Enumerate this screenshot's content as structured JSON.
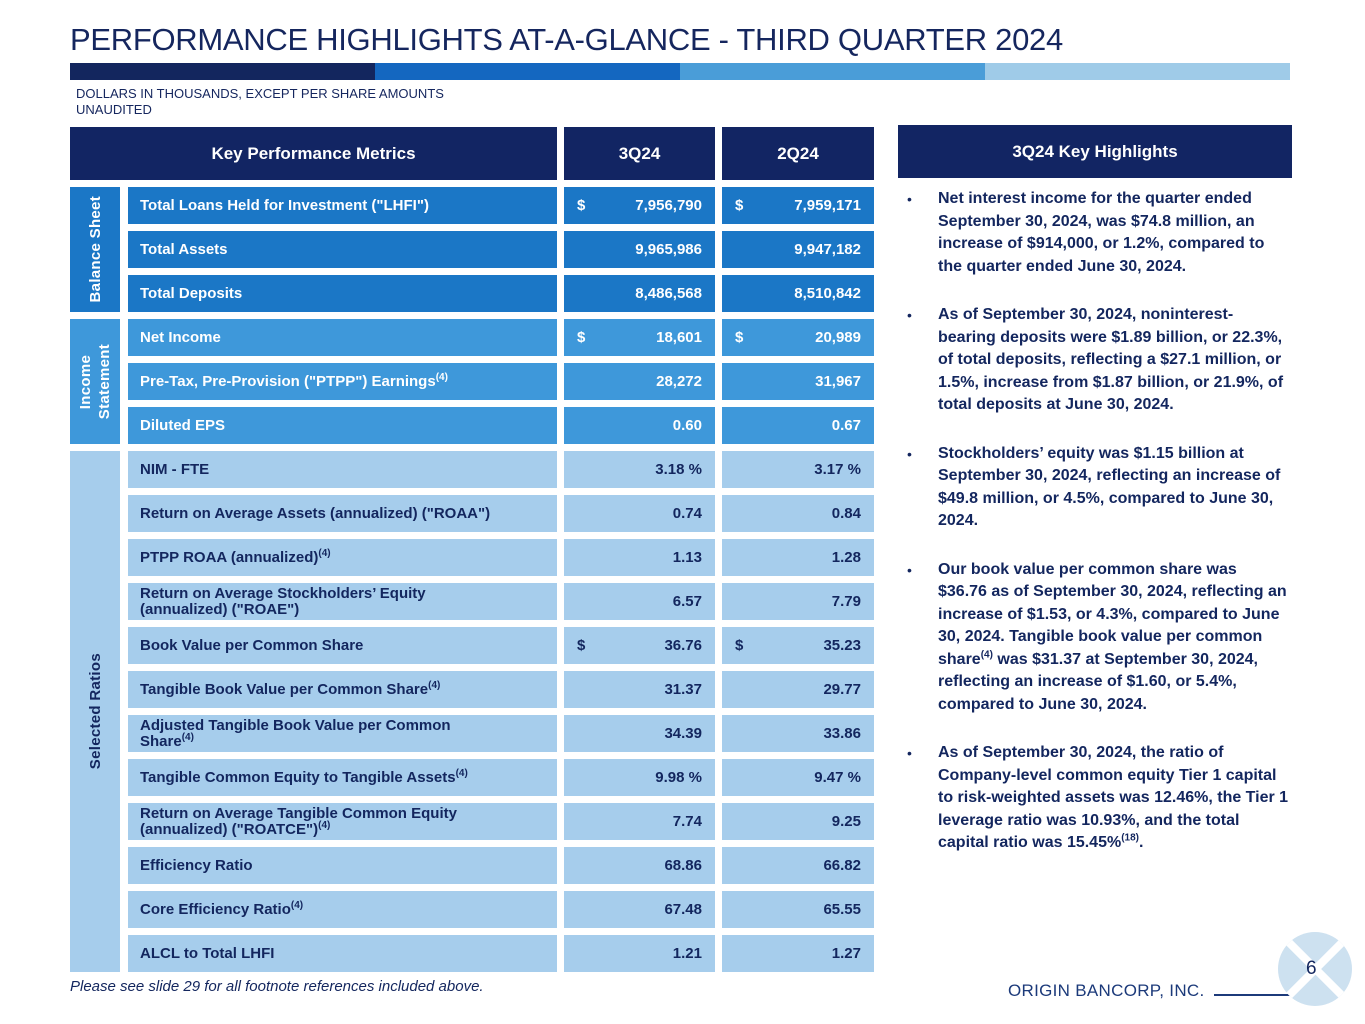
{
  "slide": {
    "title": "PERFORMANCE HIGHLIGHTS AT-A-GLANCE - THIRD QUARTER 2024",
    "note_line1": "DOLLARS IN THOUSANDS, EXCEPT PER SHARE AMOUNTS",
    "note_line2": "UNAUDITED",
    "footnote": "Please see slide 29 for all footnote references included above.",
    "company": "ORIGIN BANCORP, INC.",
    "page_number": "6"
  },
  "accent_bar": {
    "colors": [
      "#13265e",
      "#1467c0",
      "#4a9dd8",
      "#9fcbe8"
    ]
  },
  "colors": {
    "navy": "#122563",
    "balance_sheet_row": "#1b77c6",
    "income_statement_row": "#3e98da",
    "selected_ratios_row": "#a6cdec",
    "logo_fill": "#cde1f0"
  },
  "table": {
    "header": {
      "metrics": "Key Performance Metrics",
      "col1": "3Q24",
      "col2": "2Q24"
    },
    "groups": [
      {
        "id": "balance-sheet",
        "label": "Balance Sheet",
        "shade": "dark",
        "rows": [
          {
            "metric": "Total Loans Held for Investment (\"LHFI\")",
            "dollar": true,
            "v1": "7,956,790",
            "v2": "7,959,171"
          },
          {
            "metric": "Total Assets",
            "v1": "9,965,986",
            "v2": "9,947,182"
          },
          {
            "metric": "Total Deposits",
            "v1": "8,486,568",
            "v2": "8,510,842"
          }
        ]
      },
      {
        "id": "income-statement",
        "label": "Income\nStatement",
        "shade": "mid",
        "rows": [
          {
            "metric": "Net Income",
            "dollar": true,
            "v1": "18,601",
            "v2": "20,989"
          },
          {
            "metric": "Pre-Tax, Pre-Provision (\"PTPP\") Earnings",
            "sup": "(4)",
            "v1": "28,272",
            "v2": "31,967"
          },
          {
            "metric": "Diluted EPS",
            "v1": "0.60",
            "v2": "0.67"
          }
        ]
      },
      {
        "id": "selected-ratios",
        "label": "Selected Ratios",
        "shade": "light",
        "rows": [
          {
            "metric": "NIM - FTE",
            "v1": "3.18 %",
            "v2": "3.17 %"
          },
          {
            "metric": "Return on Average Assets (annualized) (\"ROAA\")",
            "v1": "0.74",
            "v2": "0.84"
          },
          {
            "metric": "PTPP ROAA (annualized)",
            "sup": "(4)",
            "v1": "1.13",
            "v2": "1.28"
          },
          {
            "metric": "Return on Average Stockholders’ Equity\n(annualized) (\"ROAE\")",
            "v1": "6.57",
            "v2": "7.79"
          },
          {
            "metric": "Book Value per Common Share",
            "dollar": true,
            "v1": "36.76",
            "v2": "35.23"
          },
          {
            "metric": "Tangible Book Value per Common Share",
            "sup": "(4)",
            "v1": "31.37",
            "v2": "29.77"
          },
          {
            "metric": "Adjusted Tangible Book Value per Common\nShare",
            "sup": "(4)",
            "v1": "34.39",
            "v2": "33.86"
          },
          {
            "metric": "Tangible Common Equity to Tangible Assets",
            "sup": "(4)",
            "v1": "9.98 %",
            "v2": "9.47 %"
          },
          {
            "metric": "Return on Average Tangible Common Equity\n(annualized) (\"ROATCE\")",
            "sup": "(4)",
            "v1": "7.74",
            "v2": "9.25"
          },
          {
            "metric": "Efficiency Ratio",
            "v1": "68.86",
            "v2": "66.82"
          },
          {
            "metric": "Core Efficiency Ratio",
            "sup": "(4)",
            "v1": "67.48",
            "v2": "65.55"
          },
          {
            "metric": "ALCL to Total LHFI",
            "v1": "1.21",
            "v2": "1.27"
          }
        ]
      }
    ]
  },
  "highlights": {
    "title": "3Q24 Key Highlights",
    "bullets": [
      {
        "segments": [
          {
            "text": "Net interest income for the quarter ended September 30, 2024, was $74.8 million, an increase of $914,000, or 1.2%, compared to the quarter ended June 30, 2024."
          }
        ]
      },
      {
        "segments": [
          {
            "text": "As of September 30, 2024, noninterest-bearing deposits were $1.89 billion, or 22.3%, of total deposits, reflecting a $27.1 million, or 1.5%, increase from $1.87 billion, or 21.9%, of total deposits at June 30, 2024."
          }
        ]
      },
      {
        "segments": [
          {
            "text": "Stockholders’ equity was $1.15 billion at September 30, 2024, reflecting an increase of $49.8 million, or 4.5%, compared to June 30, 2024."
          }
        ]
      },
      {
        "segments": [
          {
            "text": "Our book value per common share was $36.76 as of September 30, 2024, reflecting an increase of $1.53, or 4.3%, compared to June 30, 2024. Tangible book value per common share"
          },
          {
            "sup": "(4)"
          },
          {
            "text": " was $31.37 at September 30, 2024, reflecting an increase of $1.60, or 5.4%, compared to June 30, 2024."
          }
        ]
      },
      {
        "segments": [
          {
            "text": "As of September 30, 2024, the ratio of Company-level common equity Tier 1 capital to risk-weighted assets was 12.46%, the Tier 1 leverage ratio was 10.93%, and the total capital ratio was 15.45%"
          },
          {
            "sup": "(18)"
          },
          {
            "text": "."
          }
        ]
      }
    ]
  }
}
